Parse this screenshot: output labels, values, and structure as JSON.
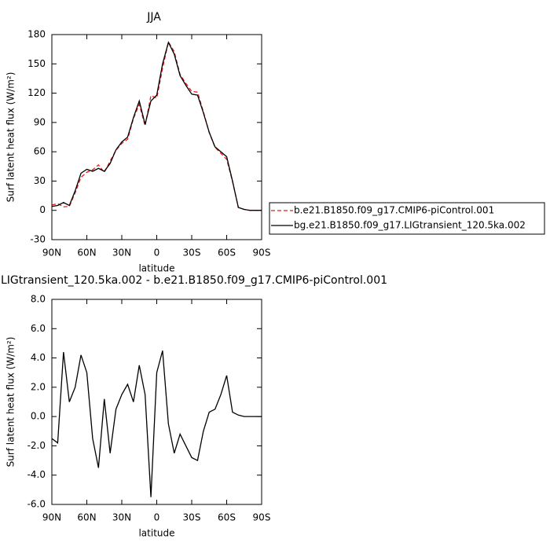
{
  "chart_data": [
    {
      "type": "line",
      "title": "JJA",
      "x_label": "latitude",
      "y_label": "Surf latent heat flux (W/m²)",
      "x": [
        90,
        85,
        80,
        75,
        70,
        65,
        60,
        55,
        50,
        45,
        40,
        35,
        30,
        25,
        20,
        15,
        10,
        5,
        0,
        -5,
        -10,
        -15,
        -20,
        -25,
        -30,
        -35,
        -40,
        -45,
        -50,
        -55,
        -60,
        -65,
        -70,
        -75,
        -80,
        -85,
        -90
      ],
      "series": [
        {
          "name": "b.e21.B1850.f09_g17.CMIP6-piControl.001",
          "color": "#e8191b",
          "dashed": true,
          "values": [
            5.5,
            6.8,
            3.6,
            4,
            18,
            33.8,
            39,
            41.5,
            46.5,
            38.8,
            50.5,
            61.5,
            68.5,
            72.8,
            94,
            108.5,
            86.5,
            117.5,
            115,
            145.5,
            172.5,
            162.5,
            139.2,
            130,
            121.8,
            121,
            101,
            79.7,
            64.5,
            58.5,
            52.2,
            29.7,
            2.9,
            1,
            0,
            0,
            0
          ]
        },
        {
          "name": "bg.e21.B1850.f09_g17.LIGtransient_120.5ka.002",
          "color": "#000000",
          "dashed": false,
          "values": [
            4,
            5,
            8,
            5,
            20,
            38,
            42,
            40,
            43,
            40,
            48,
            62,
            70,
            75,
            95,
            112,
            88,
            112,
            118,
            150,
            172,
            160,
            138,
            128,
            119,
            118,
            100,
            80,
            65,
            60,
            55,
            30,
            3,
            1,
            0,
            0,
            0
          ]
        }
      ],
      "xlim": [
        90,
        -90
      ],
      "xticks": [
        {
          "value": 90,
          "label": "90N"
        },
        {
          "value": 60,
          "label": "60N"
        },
        {
          "value": 30,
          "label": "30N"
        },
        0,
        {
          "value": -30,
          "label": "30S"
        },
        {
          "value": -60,
          "label": "60S"
        },
        {
          "value": -90,
          "label": "90S"
        }
      ],
      "ylim": [
        -30,
        180
      ],
      "yticks": [
        -30,
        0,
        30,
        60,
        90,
        120,
        150,
        180
      ]
    },
    {
      "type": "line",
      "title": "LIGtransient_120.5ka.002 - b.e21.B1850.f09_g17.CMIP6-piControl.001",
      "x_label": "latitude",
      "y_label": "Surf latent heat flux (W/m²)",
      "x": [
        90,
        85,
        80,
        75,
        70,
        65,
        60,
        55,
        50,
        45,
        40,
        35,
        30,
        25,
        20,
        15,
        10,
        5,
        0,
        -5,
        -10,
        -15,
        -20,
        -25,
        -30,
        -35,
        -40,
        -45,
        -50,
        -55,
        -60,
        -65,
        -70,
        -75,
        -80,
        -85,
        -90
      ],
      "series": [
        {
          "color": "#000000",
          "dashed": false,
          "values": [
            -1.5,
            -1.8,
            4.4,
            1.0,
            2.0,
            4.2,
            3.0,
            -1.5,
            -3.5,
            1.2,
            -2.5,
            0.5,
            1.5,
            2.2,
            1.0,
            3.5,
            1.5,
            -5.5,
            3.0,
            4.5,
            -0.5,
            -2.5,
            -1.2,
            -2.0,
            -2.8,
            -3.0,
            -1.0,
            0.3,
            0.5,
            1.5,
            2.8,
            0.3,
            0.1,
            0.0,
            0.0,
            0.0,
            0.0
          ]
        }
      ],
      "xlim": [
        90,
        -90
      ],
      "xticks": [
        {
          "value": 90,
          "label": "90N"
        },
        {
          "value": 60,
          "label": "60N"
        },
        {
          "value": 30,
          "label": "30N"
        },
        0,
        {
          "value": -30,
          "label": "30S"
        },
        {
          "value": -60,
          "label": "60S"
        },
        {
          "value": -90,
          "label": "90S"
        }
      ],
      "ylim": [
        -6,
        8
      ],
      "yticks": [
        {
          "value": -6,
          "label": "-6.0"
        },
        {
          "value": -4,
          "label": "-4.0"
        },
        {
          "value": -2,
          "label": "-2.0"
        },
        {
          "value": 0,
          "label": "0.0"
        },
        {
          "value": 2,
          "label": "2.0"
        },
        {
          "value": 4,
          "label": "4.0"
        },
        {
          "value": 6,
          "label": "6.0"
        },
        {
          "value": 8,
          "label": "8.0"
        }
      ]
    }
  ]
}
